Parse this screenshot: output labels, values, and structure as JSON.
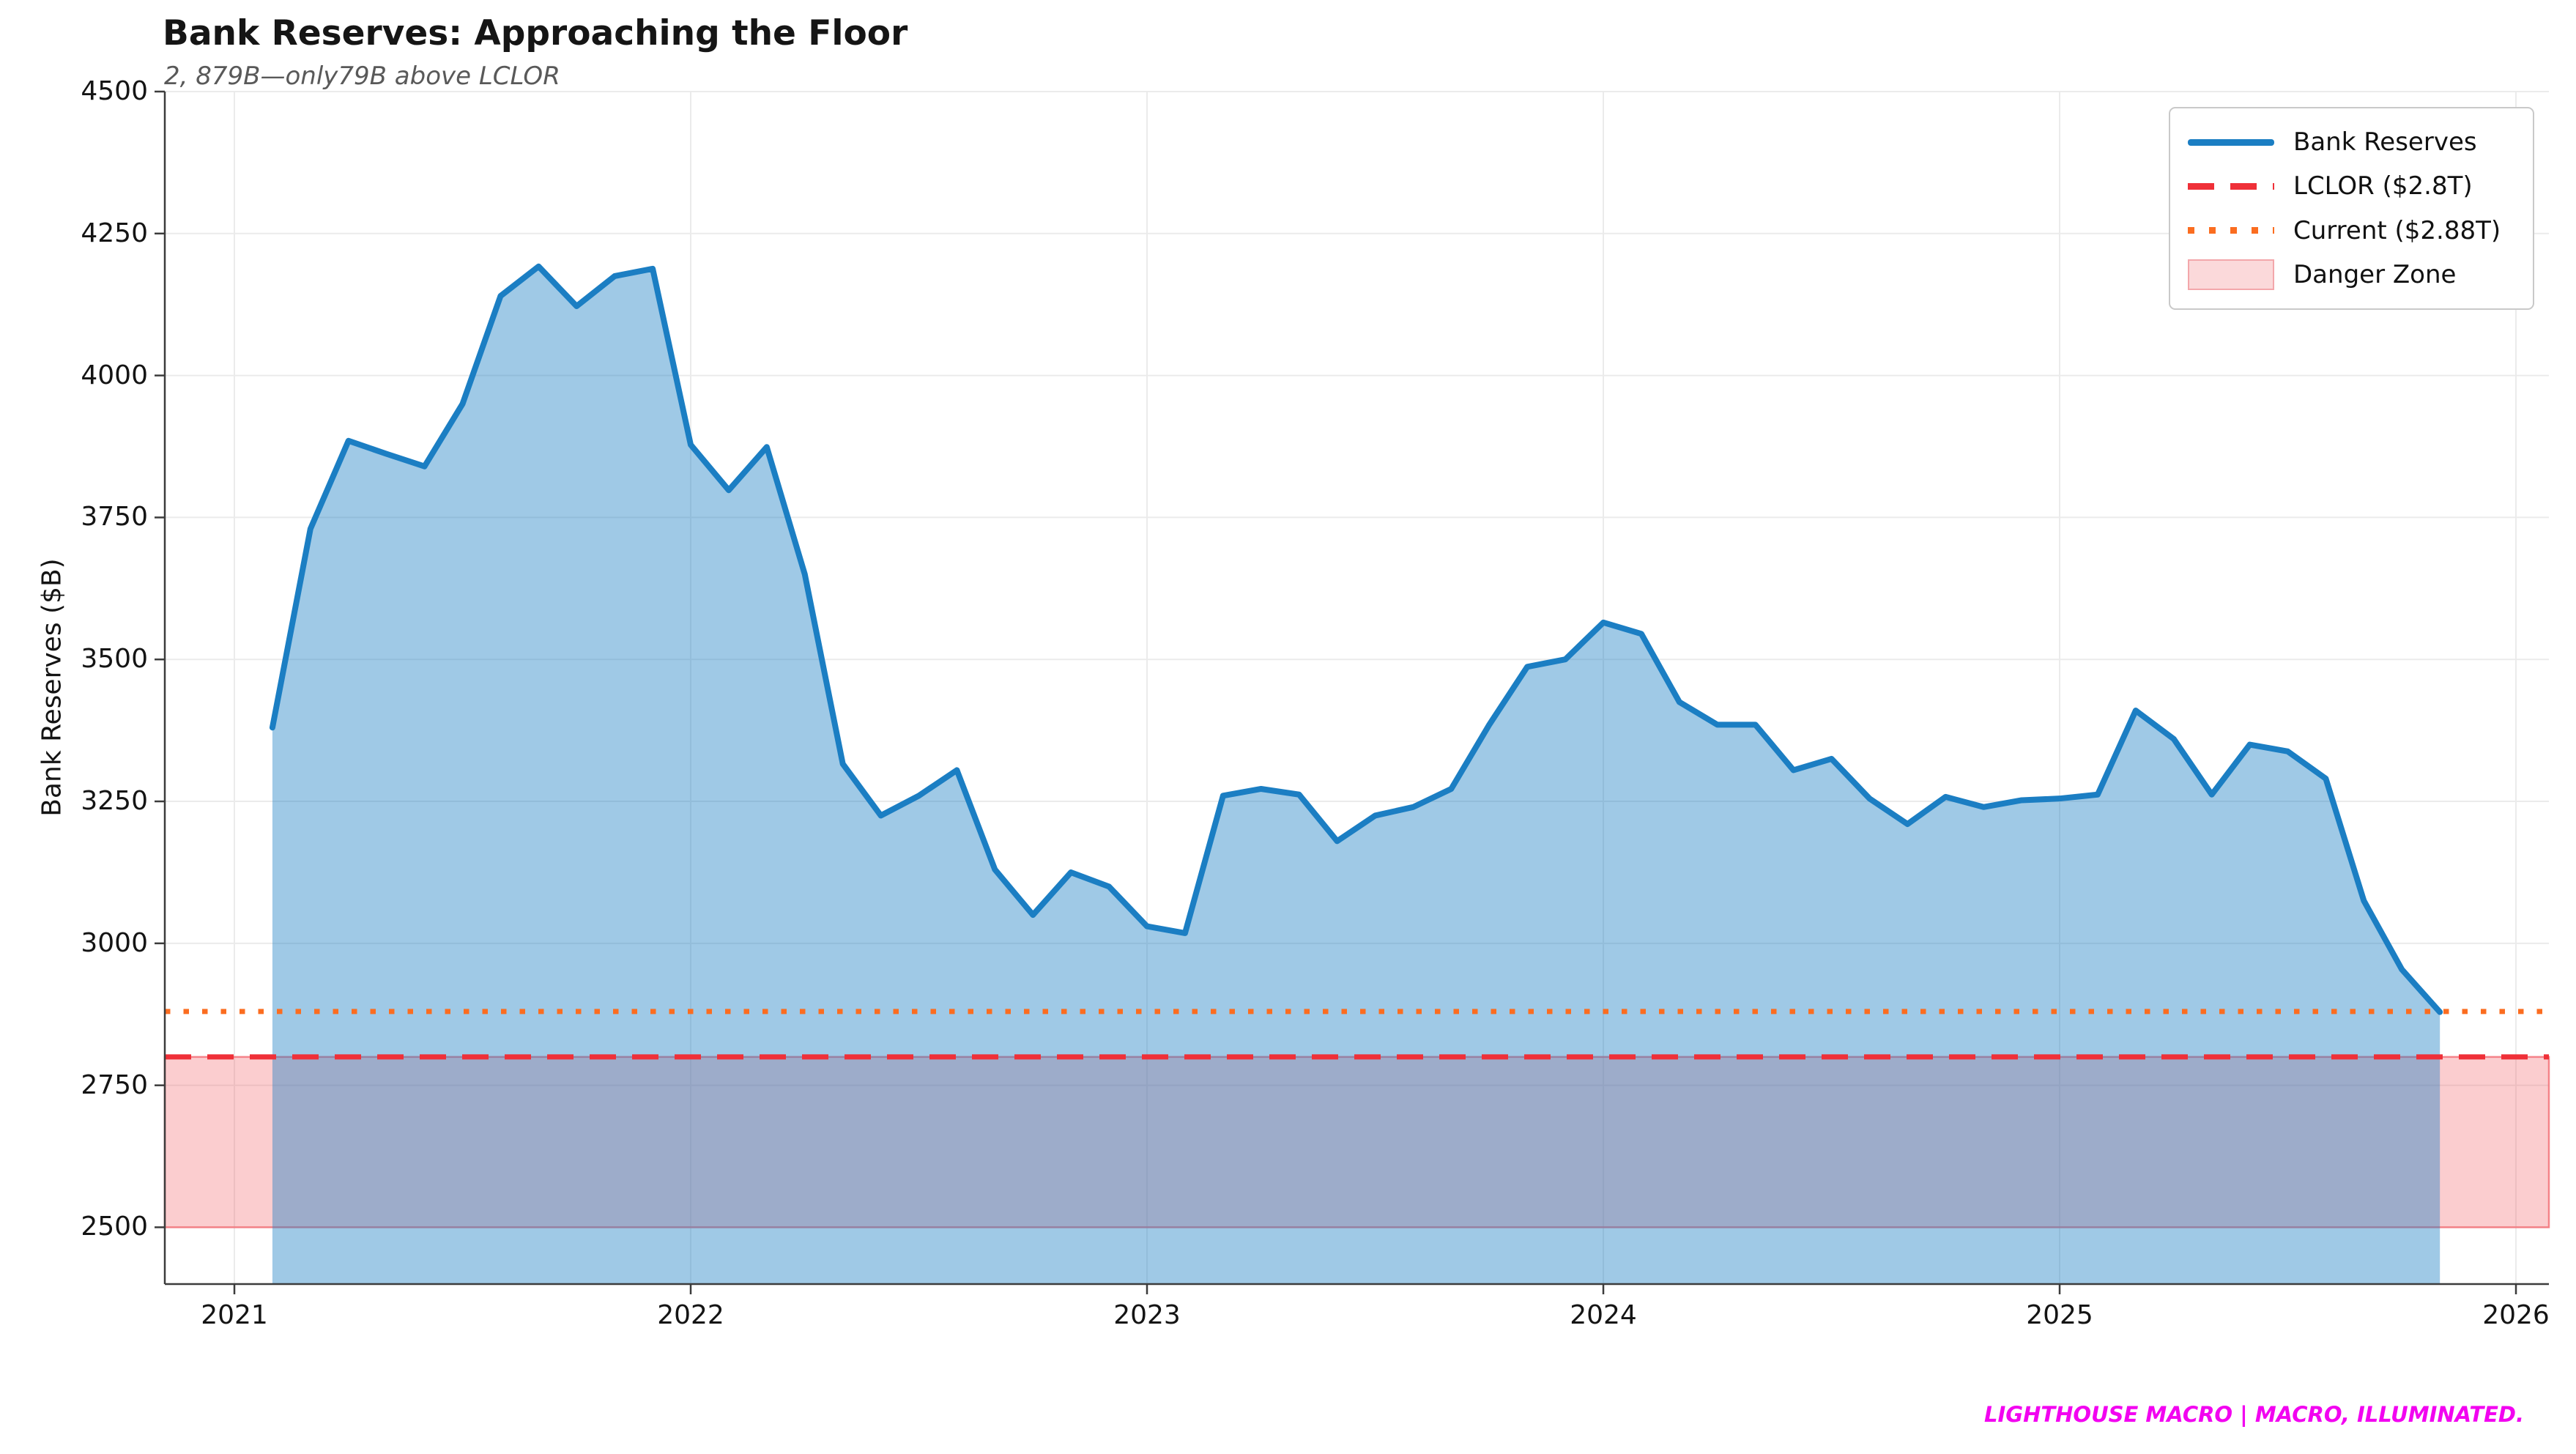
{
  "figure": {
    "title": "Bank Reserves: Approaching the Floor",
    "subtitle": "2, 879B—only79B above LCLOR",
    "branding": "LIGHTHOUSE MACRO | MACRO, ILLUMINATED."
  },
  "colors": {
    "reserves_line": "#1b7ec3",
    "reserves_fill": "rgba(27,126,195,0.42)",
    "lclor_red": "#ef3038",
    "current_orange": "#fb6d20",
    "danger_fill": "rgba(244,98,106,0.32)",
    "danger_border": "rgba(242,108,115,0.8)",
    "grid": "#ebebeb",
    "spine": "#3c3c3c",
    "title_text": "#151515",
    "subtitle_text": "#595959",
    "branding_text": "#f203f0",
    "tick_text": "#141414"
  },
  "chart_data": {
    "type": "area",
    "title": "Bank Reserves: Approaching the Floor",
    "xlabel": "",
    "ylabel": "Bank Reserves ($B)",
    "ylim": [
      2400,
      4500
    ],
    "xlim_years": [
      2020.8475,
      2026.0722
    ],
    "grid": true,
    "legend_position": "upper right",
    "y_ticks": [
      2500,
      2750,
      3000,
      3250,
      3500,
      3750,
      4000,
      4250,
      4500
    ],
    "x_ticks": [
      {
        "year": 2021,
        "label": "2021"
      },
      {
        "year": 2022,
        "label": "2022"
      },
      {
        "year": 2023,
        "label": "2023"
      },
      {
        "year": 2024,
        "label": "2024"
      },
      {
        "year": 2025,
        "label": "2025"
      },
      {
        "year": 2026,
        "label": "2026"
      }
    ],
    "series": [
      {
        "name": "Bank Reserves",
        "unit": "$B",
        "frequency": "monthly",
        "start_year": 2021,
        "start_month": 2,
        "values": [
          3380,
          3730,
          3885,
          3862,
          3840,
          3950,
          4140,
          4192,
          4122,
          4175,
          4188,
          3878,
          3798,
          3874,
          3650,
          3316,
          3225,
          3260,
          3305,
          3130,
          3050,
          3125,
          3100,
          3030,
          3018,
          3260,
          3272,
          3262,
          3180,
          3225,
          3240,
          3272,
          3385,
          3487,
          3500,
          3565,
          3545,
          3425,
          3385,
          3385,
          3305,
          3325,
          3255,
          3210,
          3258,
          3240,
          3252,
          3255,
          3262,
          3410,
          3360,
          3262,
          3350,
          3338,
          3290,
          3075,
          2954,
          2879
        ]
      }
    ],
    "reference_lines": [
      {
        "name": "LCLOR ($2.8T)",
        "value": 2800,
        "style": "dashed"
      },
      {
        "name": "Current ($2.88T)",
        "value": 2880,
        "style": "dotted"
      }
    ],
    "danger_zone": {
      "name": "Danger Zone",
      "from": 2500,
      "to": 2800
    },
    "legend": [
      {
        "label": "Bank Reserves"
      },
      {
        "label": "LCLOR ($2.8T)"
      },
      {
        "label": "Current ($2.88T)"
      },
      {
        "label": "Danger Zone"
      }
    ]
  }
}
